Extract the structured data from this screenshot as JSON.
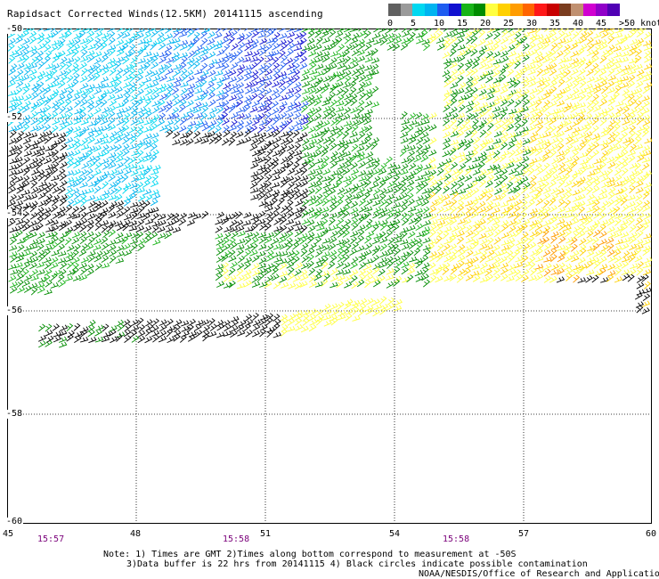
{
  "title": "Rapidsact Corrected Winds(12.5KM) 20141115 ascending",
  "legend": {
    "ticks": [
      "0",
      "5",
      "10",
      "15",
      "20",
      "25",
      "30",
      "35",
      "40",
      "45",
      ">50 knots"
    ],
    "colors": [
      "#606060",
      "#9a9a9a",
      "#00d8f0",
      "#00b4f0",
      "#1e5cf0",
      "#1010d0",
      "#18b418",
      "#008c00",
      "#ffff40",
      "#ffd000",
      "#ff9c00",
      "#ff6400",
      "#ff1818",
      "#c80000",
      "#7a3c1e",
      "#c09070",
      "#d000d0",
      "#9000c8",
      "#5000b4"
    ]
  },
  "map": {
    "lat_labels": [
      "-50",
      "-52",
      "-54",
      "-56",
      "-58",
      "-60"
    ],
    "lon_labels": [
      "45",
      "48",
      "51",
      "54",
      "57",
      "60"
    ],
    "times": [
      "15:57",
      "15:58",
      "15:58"
    ],
    "barb_colors": {
      "calm": "#000000",
      "light_cyan": "#00d8f0",
      "cyan": "#00b4f0",
      "blue": "#1e5cf0",
      "dark_blue": "#1010d0",
      "green": "#18b418",
      "dark_green": "#008c00",
      "yellow": "#ffff40",
      "gold": "#ffd000",
      "orange": "#ff9c00"
    }
  },
  "notes": {
    "line1": "Note: 1) Times are GMT 2)Times along bottom correspond to measurement at -50S",
    "line2": "3)Data buffer is 22 hrs from 20141115 4) Black circles indicate possible contamination",
    "credit": "NOAA/NESDIS/Office of Research and Applications"
  }
}
